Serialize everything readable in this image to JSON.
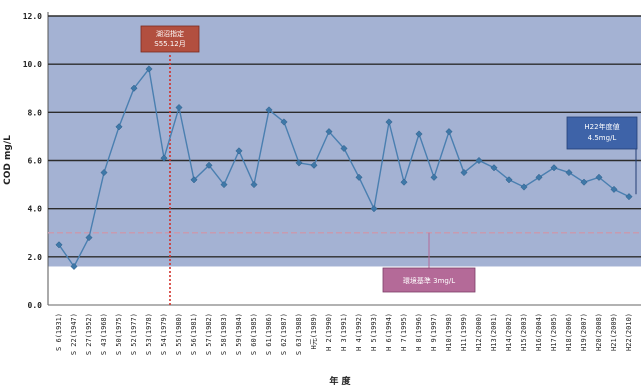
{
  "chart_data": {
    "type": "line",
    "xlabel": "年 度",
    "ylabel": "COD mg/L",
    "ylim": [
      0,
      12
    ],
    "yticks": [
      "0.0",
      "2.0",
      "4.0",
      "6.0",
      "8.0",
      "10.0",
      "12.0"
    ],
    "grid": true,
    "categories": [
      "S 6(1931)",
      "S 22(1947)",
      "S 27(1952)",
      "S 43(1968)",
      "S 50(1975)",
      "S 52(1977)",
      "S 53(1978)",
      "S 54(1979)",
      "S 55(1980)",
      "S 56(1981)",
      "S 57(1982)",
      "S 58(1983)",
      "S 59(1984)",
      "S 60(1985)",
      "S 61(1986)",
      "S 62(1987)",
      "S 63(1988)",
      "H元(1989)",
      "H 2(1990)",
      "H 3(1991)",
      "H 4(1992)",
      "H 5(1993)",
      "H 6(1994)",
      "H 7(1995)",
      "H 8(1996)",
      "H 9(1997)",
      "H10(1998)",
      "H11(1999)",
      "H12(2000)",
      "H13(2001)",
      "H14(2002)",
      "H15(2003)",
      "H16(2004)",
      "H17(2005)",
      "H18(2006)",
      "H19(2007)",
      "H20(2008)",
      "H21(2009)",
      "H22(2010)"
    ],
    "series": [
      {
        "values": [
          2.5,
          1.6,
          2.8,
          5.5,
          7.4,
          9.0,
          9.8,
          6.1,
          8.2,
          5.2,
          5.8,
          5.0,
          6.4,
          5.0,
          8.1,
          7.6,
          5.9,
          5.8,
          7.2,
          6.5,
          5.3,
          4.0,
          7.6,
          5.1,
          7.1,
          5.3,
          7.2,
          5.5,
          6.0,
          5.7,
          5.2,
          4.9,
          5.3,
          5.7,
          5.5,
          5.1,
          5.3,
          4.8,
          4.5
        ],
        "color": "#4a7fb0",
        "marker_color": "#3f78a8"
      }
    ],
    "shaded_band": {
      "from": 1.6,
      "to": 12,
      "color": "#a4b2d3"
    },
    "threshold_line": {
      "value": 3.0,
      "color": "#c79bb0"
    },
    "event_line": {
      "category_index": 8,
      "color": "#d0302a"
    },
    "annotations": [
      {
        "lines": [
          "湖沼指定",
          "S55.12月"
        ],
        "color": "#b24f3f",
        "category_index": 8
      },
      {
        "lines": [
          "H22年度値",
          "4.5mg/L"
        ],
        "color": "#3e63a8",
        "category_index": 38
      },
      {
        "lines": [
          "環境基準 3mg/L"
        ],
        "color": "#b46a98",
        "category_index": 23
      }
    ]
  }
}
